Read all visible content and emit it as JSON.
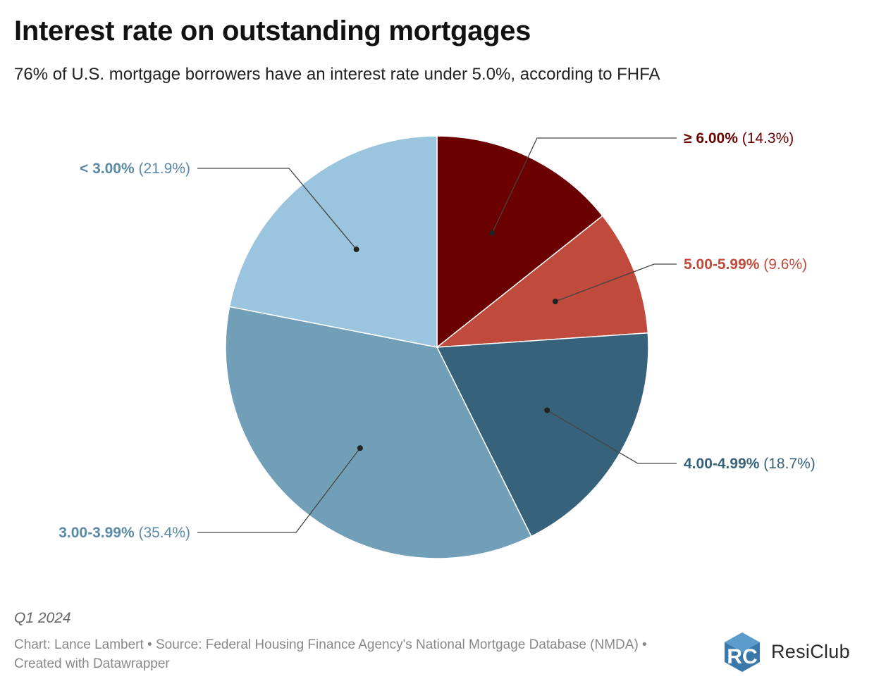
{
  "title": "Interest rate on outstanding mortgages",
  "subtitle": "76% of U.S. mortgage borrowers have an interest rate under 5.0%, according to FHFA",
  "note": "Q1 2024",
  "source": "Chart: Lance Lambert • Source: Federal Housing Finance Agency's National Mortgage Database (NMDA) • Created with Datawrapper",
  "brand": {
    "name": "ResiClub",
    "logo_letters": "RC",
    "logo_color": "#2a6fa0"
  },
  "chart_data": {
    "type": "pie",
    "slices": [
      {
        "label": "≥ 6.00%",
        "pct_text": "(14.3%)",
        "value": 14.3,
        "color": "#6b0000",
        "label_color": "#6b0000"
      },
      {
        "label": "5.00-5.99%",
        "pct_text": "(9.6%)",
        "value": 9.6,
        "color": "#c04a3b",
        "label_color": "#c04a3b"
      },
      {
        "label": "4.00-4.99%",
        "pct_text": "(18.7%)",
        "value": 18.7,
        "color": "#36637b",
        "label_color": "#36637b"
      },
      {
        "label": "3.00-3.99%",
        "pct_text": "(35.4%)",
        "value": 35.4,
        "color": "#729fb8",
        "label_color": "#5b8aa6"
      },
      {
        "label": "< 3.00%",
        "pct_text": "(21.9%)",
        "value": 21.9,
        "color": "#9bc4de",
        "label_color": "#5b8aa6"
      }
    ]
  }
}
